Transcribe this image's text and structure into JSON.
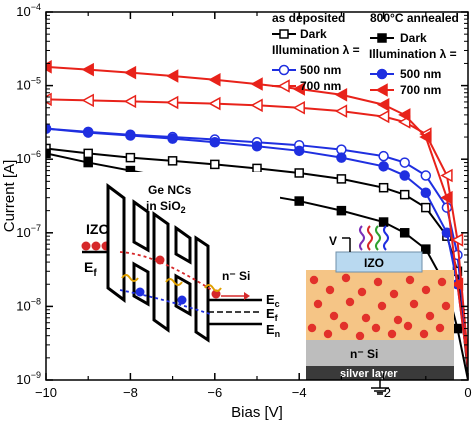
{
  "chart_data": {
    "type": "line",
    "xlabel": "Bias [V]",
    "ylabel": "Current [A]",
    "xlim": [
      -10,
      0
    ],
    "ylim": [
      1e-09,
      0.0001
    ],
    "yscale": "log",
    "x_ticks": [
      "−10",
      "−8",
      "−6",
      "−4",
      "−2",
      "0"
    ],
    "y_ticks": [
      {
        "base": "10",
        "exp": "−9"
      },
      {
        "base": "10",
        "exp": "−8"
      },
      {
        "base": "10",
        "exp": "−7"
      },
      {
        "base": "10",
        "exp": "−6"
      },
      {
        "base": "10",
        "exp": "−5"
      },
      {
        "base": "10",
        "exp": "−4"
      }
    ],
    "legend": {
      "group1_title": "as deposited",
      "group2_title": "800°C annealed",
      "dark": "Dark",
      "illumination": "Illumination λ =",
      "nm500": "500 nm",
      "nm700": "700 nm"
    },
    "series": [
      {
        "name": "as deposited Dark",
        "color": "#000000",
        "marker": "square-open",
        "x": [
          -10,
          -9,
          -8,
          -7,
          -6,
          -5,
          -4,
          -3,
          -2,
          -1.5,
          -1,
          -0.5,
          -0.25,
          0
        ],
        "y": [
          1.4e-06,
          1.2e-06,
          1.05e-06,
          9.5e-07,
          8.5e-07,
          7.5e-07,
          6.5e-07,
          5.4e-07,
          4.1e-07,
          3.3e-07,
          2.2e-07,
          9e-08,
          3e-08,
          1.2e-09
        ]
      },
      {
        "name": "as deposited 500 nm",
        "color": "#1f2fe0",
        "marker": "circle-open",
        "x": [
          -10,
          -9,
          -8,
          -7,
          -6,
          -5,
          -4,
          -3,
          -2,
          -1.5,
          -1,
          -0.5,
          -0.25,
          0
        ],
        "y": [
          2.6e-06,
          2.35e-06,
          2.15e-06,
          2e-06,
          1.85e-06,
          1.7e-06,
          1.55e-06,
          1.35e-06,
          1.1e-06,
          9e-07,
          6e-07,
          2.2e-07,
          5e-08,
          2e-09
        ]
      },
      {
        "name": "as deposited 700 nm",
        "color": "#e8221a",
        "marker": "triangle-left-open",
        "x": [
          -10,
          -9,
          -8,
          -7,
          -6,
          -5,
          -4,
          -3,
          -2,
          -1.5,
          -1,
          -0.5,
          -0.25,
          0
        ],
        "y": [
          6.5e-06,
          6.3e-06,
          6.1e-06,
          5.9e-06,
          5.7e-06,
          5.4e-06,
          5e-06,
          4.5e-06,
          3.8e-06,
          3.2e-06,
          2.2e-06,
          6e-07,
          8e-08,
          2e-09
        ]
      },
      {
        "name": "800°C annealed Dark",
        "color": "#000000",
        "marker": "square-filled",
        "x": [
          -10,
          -9,
          -8,
          -7,
          -6,
          -5,
          -4,
          -3,
          -2,
          -1.5,
          -1,
          -0.5,
          -0.25,
          0
        ],
        "y": [
          1.2e-06,
          9e-07,
          7e-07,
          5.5e-07,
          4.3e-07,
          3.4e-07,
          2.7e-07,
          2e-07,
          1.4e-07,
          1e-07,
          6e-08,
          1.8e-08,
          5e-09,
          1e-09
        ]
      },
      {
        "name": "800°C annealed 500 nm",
        "color": "#1f2fe0",
        "marker": "circle-filled",
        "x": [
          -10,
          -9,
          -8,
          -7,
          -6,
          -5,
          -4,
          -3,
          -2,
          -1.5,
          -1,
          -0.5,
          -0.25,
          0
        ],
        "y": [
          2.6e-06,
          2.3e-06,
          2.1e-06,
          1.9e-06,
          1.7e-06,
          1.5e-06,
          1.3e-06,
          1.05e-06,
          8e-07,
          6e-07,
          3.5e-07,
          1e-07,
          2e-08,
          1.5e-09
        ]
      },
      {
        "name": "800°C annealed 700 nm",
        "color": "#e8221a",
        "marker": "triangle-left-filled",
        "x": [
          -10,
          -9,
          -8,
          -7,
          -6,
          -5,
          -4,
          -3,
          -2,
          -1.5,
          -1,
          -0.5,
          -0.25,
          0
        ],
        "y": [
          1.8e-05,
          1.65e-05,
          1.5e-05,
          1.35e-05,
          1.2e-05,
          1.05e-05,
          9e-06,
          7.5e-06,
          5.5e-06,
          4e-06,
          2e-06,
          3e-07,
          2e-08,
          1.5e-09
        ]
      }
    ],
    "inset_left": {
      "izo": "IZO",
      "ef": "E",
      "ef_sub": "f",
      "ge_ncs": "Ge NCs",
      "in_sio2": "in SiO",
      "sio2_sub": "2",
      "nsi": "n⁻ Si",
      "ec": "E",
      "ec_sub": "c",
      "ef2": "E",
      "ef2_sub": "f",
      "en": "E",
      "en_sub": "n"
    },
    "inset_right": {
      "v": "V",
      "izo": "IZO",
      "nsi": "n⁻ Si",
      "silver": "silver layer"
    }
  }
}
